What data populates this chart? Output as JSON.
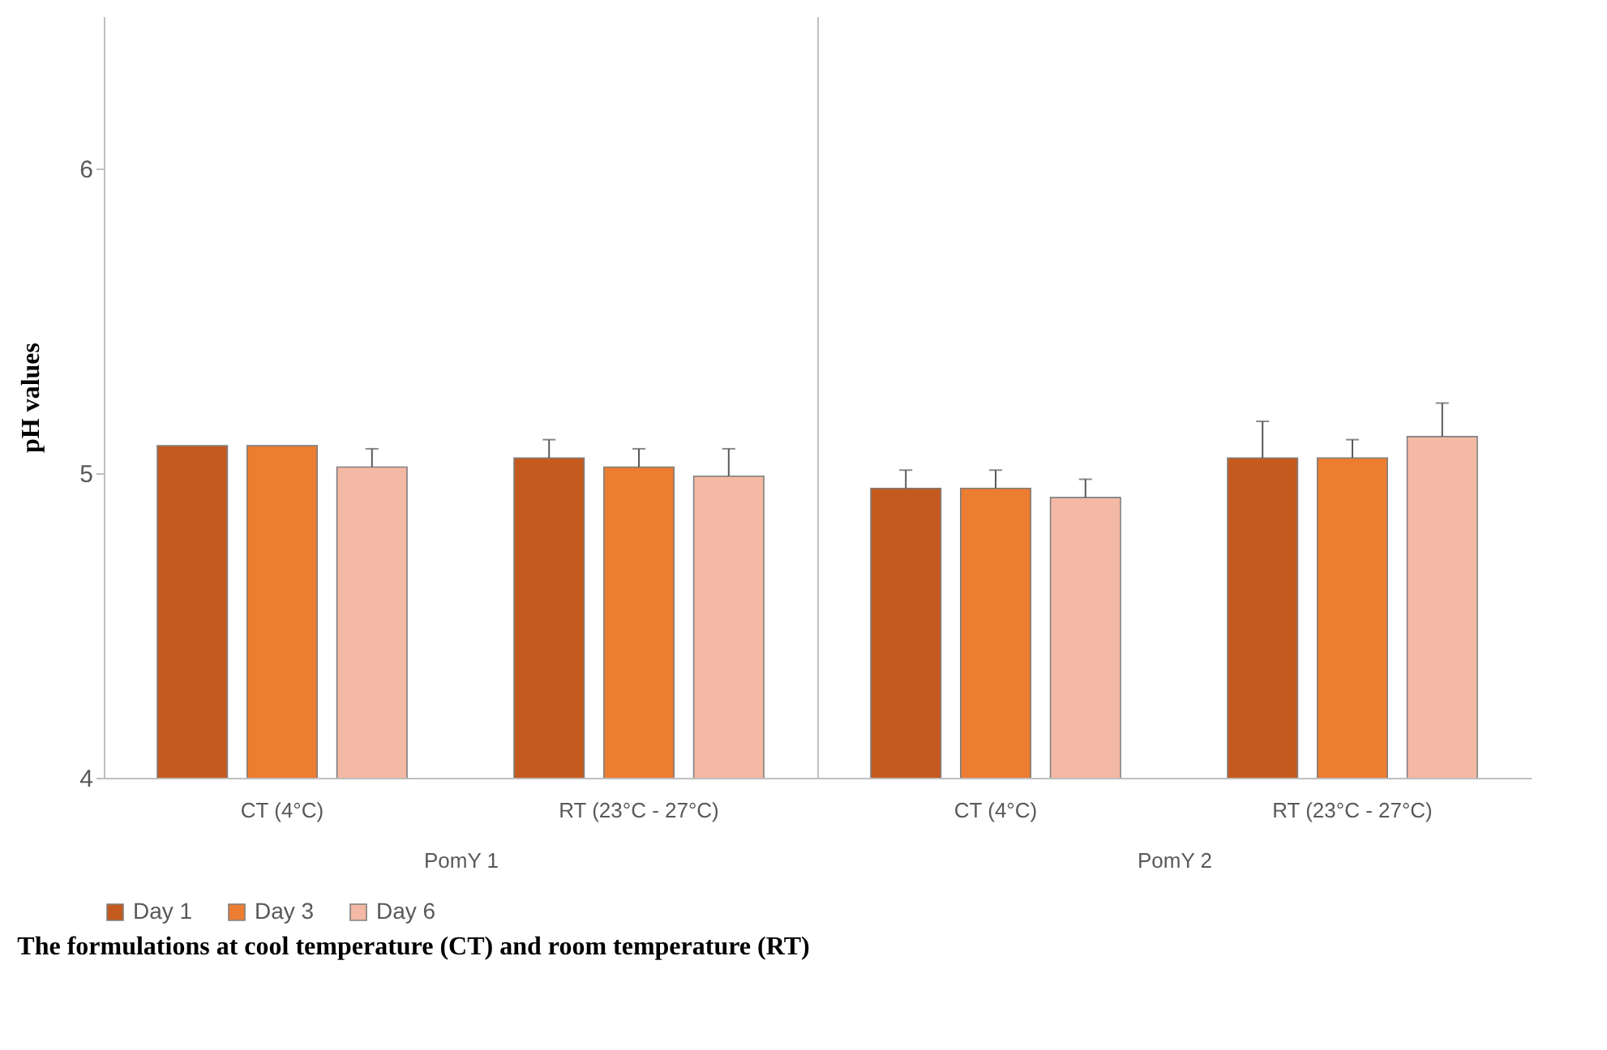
{
  "chart_data": {
    "type": "bar",
    "xlabel": "The formulations  at cool temperature (CT) and room temperature (RT)",
    "ylabel": "pH values",
    "categories": [
      "CT (4°C)",
      "RT (23°C - 27°C)",
      "CT (4°C)",
      "RT (23°C - 27°C)"
    ],
    "annotations": [
      "PomY 1",
      "PomY 2"
    ],
    "series": [
      {
        "name": "Day 1",
        "color": "#c55a1e",
        "values": [
          5.09,
          5.05,
          4.95,
          5.05
        ],
        "errors": [
          null,
          0.06,
          0.06,
          0.12
        ]
      },
      {
        "name": "Day 3",
        "color": "#ed7d31",
        "values": [
          5.09,
          5.02,
          4.95,
          5.05
        ],
        "errors": [
          null,
          0.06,
          0.06,
          0.06
        ]
      },
      {
        "name": "Day 6",
        "color": "#f4b9a4",
        "values": [
          5.02,
          4.99,
          4.92,
          5.12
        ],
        "errors": [
          0.06,
          0.09,
          0.06,
          0.11
        ]
      }
    ],
    "ylim": [
      4,
      6.5
    ],
    "yticks": [
      4,
      5,
      6
    ],
    "grid": false,
    "legend": "bottom"
  }
}
